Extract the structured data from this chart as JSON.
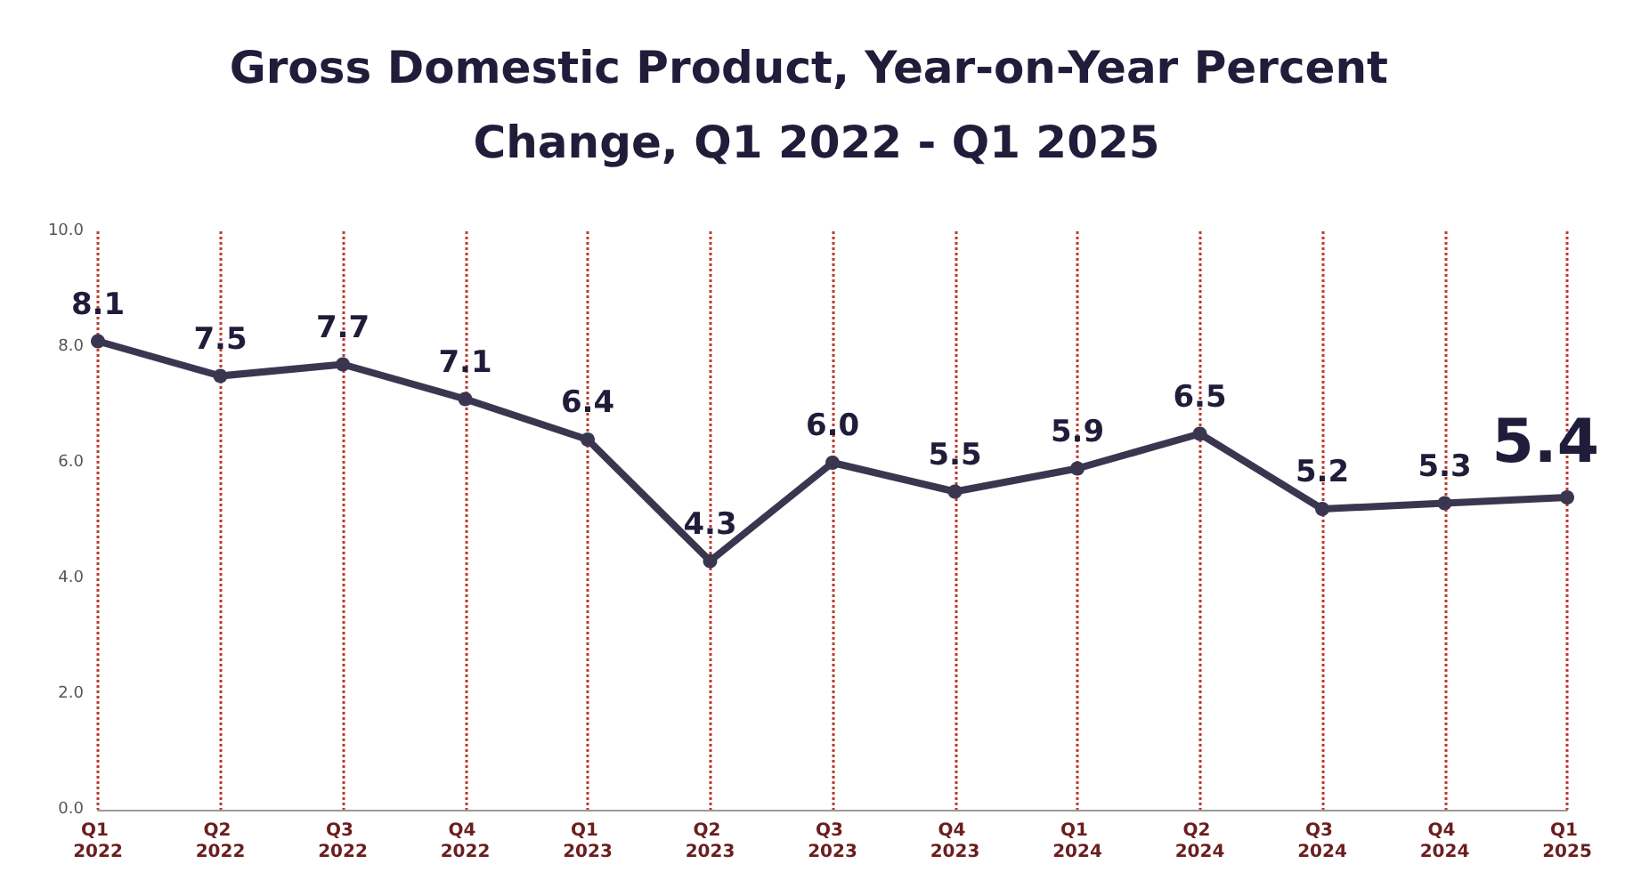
{
  "chart_data": {
    "type": "line",
    "title": "Gross Domestic Product, Year-on-Year Percent Change, Q1 2022 - Q1 2025",
    "categories": [
      "Q1 2022",
      "Q2 2022",
      "Q3 2022",
      "Q4 2022",
      "Q1 2023",
      "Q2 2023",
      "Q3 2023",
      "Q4 2023",
      "Q1 2024",
      "Q2 2024",
      "Q3 2024",
      "Q4 2024",
      "Q1 2025"
    ],
    "series": [
      {
        "color": "#3b3650",
        "values": [
          8.1,
          7.5,
          7.7,
          7.1,
          6.4,
          4.3,
          6.0,
          5.5,
          5.9,
          6.5,
          5.2,
          5.3,
          5.4
        ]
      }
    ],
    "ylim": [
      0,
      10
    ],
    "yticks": [
      {
        "value": 0,
        "label": "0.0"
      },
      {
        "value": 2,
        "label": "2.0"
      },
      {
        "value": 4,
        "label": "4.0"
      },
      {
        "value": 6,
        "label": "6.0"
      },
      {
        "value": 8,
        "label": "8.0"
      },
      {
        "value": 10,
        "label": "10.0"
      }
    ],
    "value_labels": [
      "8.1",
      "7.5",
      "7.7",
      "7.1",
      "6.4",
      "4.3",
      "6.0",
      "5.5",
      "5.9",
      "6.5",
      "5.2",
      "5.3",
      "5.4"
    ],
    "grid": "x",
    "marker": "circle",
    "line_style": "solid"
  }
}
